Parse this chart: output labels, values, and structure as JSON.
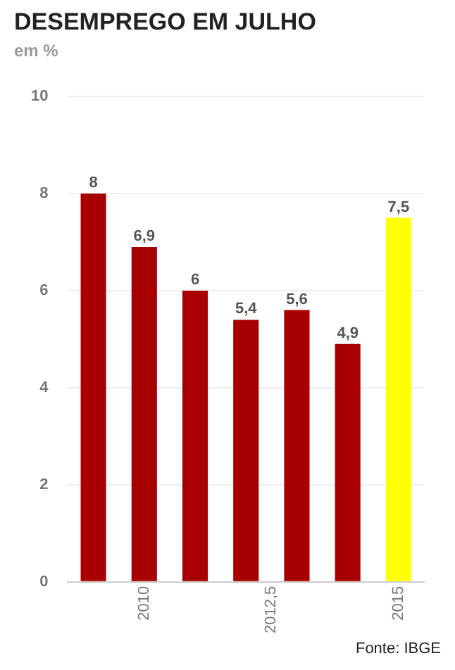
{
  "chart_data": {
    "type": "bar",
    "title": "DESEMPREGO EM JULHO",
    "subtitle": "em %",
    "x": [
      2009,
      2010,
      2011,
      2012,
      2013,
      2014,
      2015
    ],
    "values": [
      8,
      6.9,
      6,
      5.4,
      5.6,
      4.9,
      7.5
    ],
    "value_labels": [
      "8",
      "6,9",
      "6",
      "5,4",
      "5,6",
      "4,9",
      "7,5"
    ],
    "colors": [
      "#a80000",
      "#a80000",
      "#a80000",
      "#a80000",
      "#a80000",
      "#a80000",
      "#ffff00"
    ],
    "xlim": [
      2008.5,
      2015.5
    ],
    "xticks": [
      2010,
      {
        "value": 2012.5,
        "label": "2012,5"
      },
      2015
    ],
    "ylim": [
      0,
      10
    ],
    "yticks": [
      0,
      2,
      4,
      6,
      8,
      10
    ],
    "grid": "y",
    "legend": false,
    "annotations": [
      "Fonte: IBGE"
    ]
  }
}
